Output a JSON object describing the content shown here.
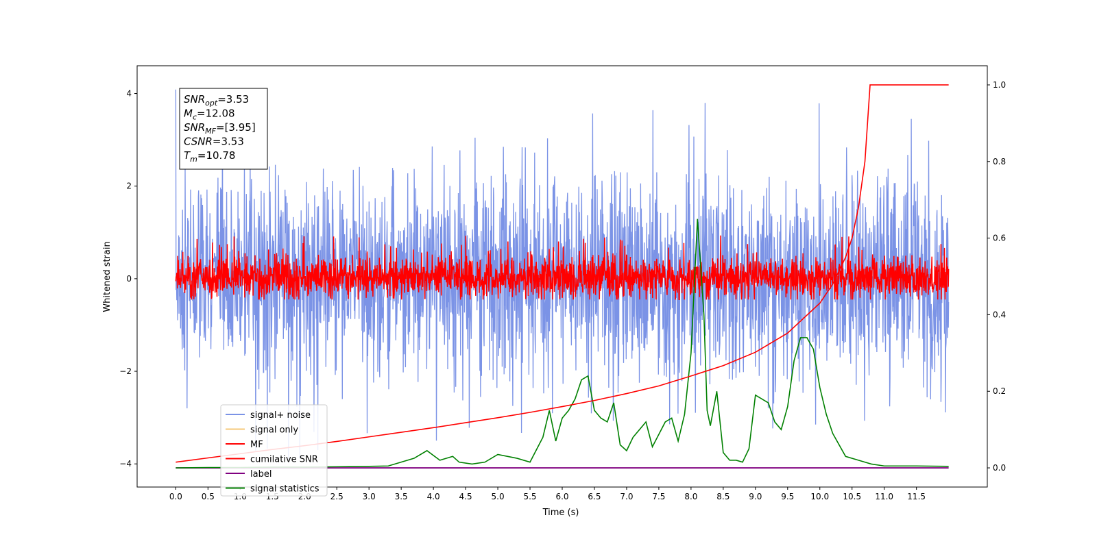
{
  "chart_data": {
    "type": "line",
    "xlabel": "Time (s)",
    "ylabel": "Whitened strain",
    "xlim": [
      -0.6,
      12.6
    ],
    "ylim": [
      -4.5,
      4.6
    ],
    "y2lim": [
      -0.05,
      1.05
    ],
    "x_ticks": [
      "0.0",
      "0.5",
      "1.0",
      "1.5",
      "2.0",
      "2.5",
      "3.0",
      "3.5",
      "4.0",
      "4.5",
      "5.0",
      "5.5",
      "6.0",
      "6.5",
      "7.0",
      "7.5",
      "8.0",
      "8.5",
      "9.0",
      "9.5",
      "10.0",
      "10.5",
      "11.0",
      "11.5"
    ],
    "y_ticks": [
      "4",
      "2",
      "0",
      "−2",
      "−4"
    ],
    "y2_ticks": [
      "1.0",
      "0.8",
      "0.6",
      "0.4",
      "0.2",
      "0.0"
    ],
    "annotation": {
      "lines": [
        {
          "sym": "SNR",
          "sub": "opt",
          "value": "=3.53"
        },
        {
          "sym": "M",
          "sub": "c",
          "value": "=12.08"
        },
        {
          "sym": "SNR",
          "sub": "MF",
          "value": "=[3.95]"
        },
        {
          "sym": "CSNR",
          "sub": "",
          "value": "=3.53"
        },
        {
          "sym": "T",
          "sub": "m",
          "value": "=10.78"
        }
      ]
    },
    "legend": {
      "placement": "lower-left",
      "entries": [
        "signal+ noise",
        "signal only",
        "MF",
        "cumilative SNR",
        "label",
        "signal statistics"
      ]
    },
    "colors": {
      "signal_noise": "#7b93e6",
      "signal_only": "#f5c87a",
      "mf": "#ff0000",
      "cumulative_snr": "#ff0000",
      "label": "#800080",
      "signal_statistics": "#008000"
    },
    "series": [
      {
        "name": "signal+ noise",
        "axis": "left",
        "x_range": [
          0.0,
          12.0
        ],
        "envelope": {
          "min": -3.9,
          "max": 4.15,
          "typical_band": [
            -2.2,
            2.2
          ]
        }
      },
      {
        "name": "MF",
        "axis": "left",
        "x_range": [
          0.0,
          12.0
        ],
        "envelope": {
          "min": -0.45,
          "max": 1.0,
          "typical_band": [
            -0.4,
            0.8
          ]
        }
      },
      {
        "name": "cumilative SNR",
        "axis": "right",
        "x": [
          0.0,
          0.5,
          1.0,
          1.5,
          2.0,
          2.5,
          3.0,
          3.5,
          4.0,
          4.5,
          5.0,
          5.5,
          6.0,
          6.5,
          7.0,
          7.5,
          8.0,
          8.5,
          9.0,
          9.5,
          10.0,
          10.2,
          10.4,
          10.5,
          10.6,
          10.7,
          10.78,
          12.0
        ],
        "y": [
          0.015,
          0.026,
          0.037,
          0.048,
          0.058,
          0.069,
          0.081,
          0.093,
          0.105,
          0.118,
          0.131,
          0.145,
          0.16,
          0.176,
          0.194,
          0.214,
          0.24,
          0.267,
          0.302,
          0.352,
          0.43,
          0.48,
          0.55,
          0.6,
          0.68,
          0.8,
          1.0,
          1.0
        ]
      },
      {
        "name": "label",
        "axis": "right",
        "x": [
          0.0,
          12.0
        ],
        "y": [
          0.0,
          0.0
        ]
      },
      {
        "name": "signal statistics",
        "axis": "right",
        "x": [
          0.0,
          0.5,
          1.0,
          1.5,
          2.0,
          2.5,
          3.0,
          3.3,
          3.5,
          3.7,
          3.9,
          4.1,
          4.3,
          4.4,
          4.6,
          4.8,
          5.0,
          5.3,
          5.5,
          5.7,
          5.8,
          5.9,
          6.0,
          6.1,
          6.2,
          6.3,
          6.4,
          6.5,
          6.6,
          6.7,
          6.8,
          6.9,
          7.0,
          7.1,
          7.3,
          7.4,
          7.6,
          7.7,
          7.8,
          7.9,
          8.0,
          8.1,
          8.2,
          8.25,
          8.3,
          8.4,
          8.5,
          8.6,
          8.7,
          8.8,
          8.9,
          9.0,
          9.1,
          9.2,
          9.3,
          9.4,
          9.5,
          9.6,
          9.7,
          9.8,
          9.9,
          10.0,
          10.1,
          10.2,
          10.4,
          10.6,
          10.8,
          11.0,
          11.5,
          12.0
        ],
        "y": [
          0.0,
          0.001,
          0.001,
          0.002,
          0.002,
          0.003,
          0.004,
          0.005,
          0.015,
          0.025,
          0.045,
          0.02,
          0.03,
          0.015,
          0.01,
          0.015,
          0.035,
          0.025,
          0.015,
          0.08,
          0.15,
          0.07,
          0.13,
          0.15,
          0.18,
          0.23,
          0.24,
          0.15,
          0.13,
          0.12,
          0.17,
          0.06,
          0.045,
          0.08,
          0.12,
          0.055,
          0.12,
          0.13,
          0.07,
          0.14,
          0.3,
          0.65,
          0.4,
          0.15,
          0.11,
          0.2,
          0.04,
          0.02,
          0.02,
          0.015,
          0.05,
          0.19,
          0.18,
          0.17,
          0.12,
          0.1,
          0.16,
          0.28,
          0.34,
          0.34,
          0.31,
          0.21,
          0.14,
          0.09,
          0.03,
          0.02,
          0.01,
          0.005,
          0.005,
          0.004
        ]
      }
    ]
  }
}
